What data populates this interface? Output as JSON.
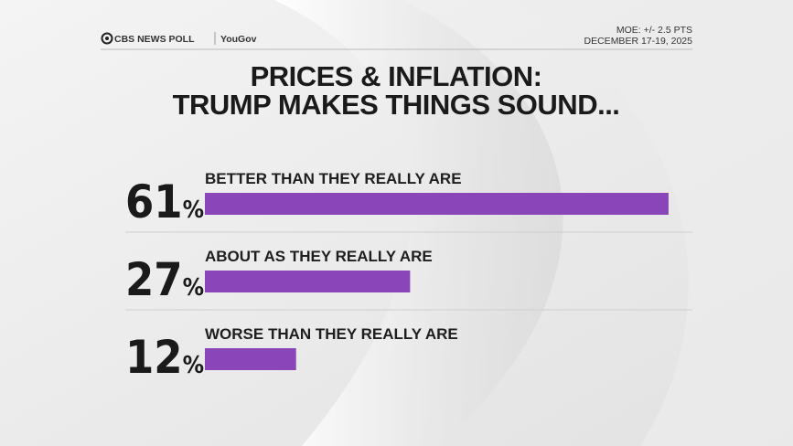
{
  "chart_data": {
    "type": "hbar",
    "source": [
      "CBS NEWS POLL",
      "YouGov"
    ],
    "notes": [
      "MOE: +/- 2.5 PTS",
      "DECEMBER 17-19, 2025"
    ],
    "title": [
      "PRICES & INFLATION:",
      "TRUMP MAKES THINGS SOUND..."
    ],
    "categories": [
      "BETTER THAN THEY REALLY ARE",
      "ABOUT AS THEY REALLY ARE",
      "WORSE THAN THEY REALLY ARE"
    ],
    "values": [
      61,
      27,
      12
    ],
    "value_labels": [
      "61%",
      "27%",
      "12%"
    ],
    "color": "#8a45b9"
  }
}
